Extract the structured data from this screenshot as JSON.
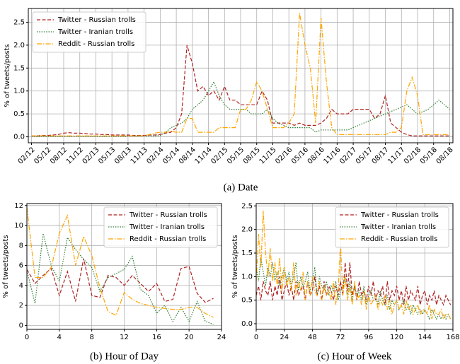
{
  "chart_data": [
    {
      "type": "line",
      "caption": "(a) Date",
      "ylabel": "% of tweets/posts",
      "grid": true,
      "legend": "upper-left",
      "categories": [
        "02/12",
        null,
        null,
        "05/12",
        null,
        null,
        "08/12",
        null,
        null,
        "11/12",
        null,
        null,
        "02/13",
        null,
        null,
        "05/13",
        null,
        null,
        "08/13",
        null,
        null,
        "11/13",
        null,
        null,
        "02/14",
        null,
        null,
        "05/14",
        null,
        null,
        "08/14",
        null,
        null,
        "11/14",
        null,
        null,
        "02/15",
        null,
        null,
        "05/15",
        null,
        null,
        "08/15",
        null,
        null,
        "11/15",
        null,
        null,
        "02/16",
        null,
        null,
        "05/16",
        null,
        null,
        "08/16",
        null,
        null,
        "11/16",
        null,
        null,
        "02/17",
        null,
        null,
        "05/17",
        null,
        null,
        "08/17",
        null,
        null,
        "11/17",
        null,
        null,
        "02/18",
        null,
        null,
        "05/18",
        null,
        null,
        "08/18"
      ],
      "ylim": [
        -0.13,
        2.8
      ],
      "yticks": [
        {
          "value": 0,
          "label": "0.0"
        },
        0.5,
        {
          "value": 1,
          "label": "1.0"
        },
        1.5,
        {
          "value": 2,
          "label": "2.0"
        },
        2.5
      ],
      "series": [
        {
          "name": "Twitter - Russian trolls",
          "color": "#b22222",
          "dash": "dashed",
          "values": [
            0.02,
            0.02,
            0.03,
            0.03,
            0.04,
            0.05,
            0.08,
            0.09,
            0.08,
            0.08,
            0.07,
            0.06,
            0.06,
            0.05,
            0.05,
            0.04,
            0.04,
            0.04,
            0.04,
            0.03,
            0.03,
            0.03,
            0.04,
            0.04,
            0.05,
            0.08,
            0.1,
            0.2,
            0.5,
            2.0,
            1.6,
            1.0,
            1.1,
            0.9,
            1.0,
            0.8,
            1.1,
            0.8,
            0.8,
            0.7,
            0.7,
            0.7,
            0.7,
            1.0,
            0.8,
            0.3,
            0.3,
            0.3,
            0.3,
            0.25,
            0.3,
            0.25,
            0.25,
            0.25,
            0.3,
            0.4,
            0.6,
            0.5,
            0.5,
            0.5,
            0.6,
            0.6,
            0.6,
            0.6,
            0.4,
            0.5,
            0.9,
            0.3,
            0.2,
            0.1,
            0.05,
            0.02,
            0.02,
            0.02,
            0.02,
            0.02,
            0.02,
            0.02,
            0.02
          ]
        },
        {
          "name": "Twitter - Iranian trolls",
          "color": "#2e7d32",
          "dash": "dotted",
          "values": [
            0.01,
            0.01,
            0.01,
            0.01,
            0.01,
            0.01,
            0.01,
            0.01,
            0.01,
            0.01,
            0.01,
            0.01,
            0.01,
            0.01,
            0.01,
            0.01,
            0.01,
            0.01,
            0.02,
            0.02,
            0.02,
            0.02,
            0.02,
            0.02,
            0.03,
            0.1,
            0.2,
            0.25,
            0.3,
            0.4,
            0.6,
            0.7,
            0.8,
            1.0,
            1.2,
            0.9,
            0.7,
            0.6,
            0.6,
            0.6,
            0.6,
            0.5,
            0.5,
            0.5,
            0.6,
            0.4,
            0.3,
            0.25,
            0.2,
            0.2,
            0.2,
            0.2,
            0.2,
            0.1,
            0.15,
            0.15,
            0.15,
            0.15,
            0.15,
            0.15,
            0.2,
            0.25,
            0.3,
            0.35,
            0.4,
            0.45,
            0.5,
            0.55,
            0.6,
            0.65,
            0.7,
            0.6,
            0.5,
            0.55,
            0.6,
            0.7,
            0.8,
            0.7,
            0.6
          ]
        },
        {
          "name": "Reddit - Russian trolls",
          "color": "#ffa500",
          "dash": "dashdot",
          "values": [
            0.02,
            0.02,
            0.02,
            0.02,
            0.02,
            0.02,
            0.02,
            0.02,
            0.02,
            0.02,
            0.02,
            0.02,
            0.02,
            0.02,
            0.02,
            0.02,
            0.02,
            0.02,
            0.02,
            0.02,
            0.02,
            0.02,
            0.05,
            0.08,
            0.1,
            0.1,
            0.12,
            0.1,
            0.1,
            0.4,
            0.4,
            0.1,
            0.1,
            0.1,
            0.1,
            0.2,
            0.2,
            0.2,
            0.2,
            0.6,
            0.6,
            0.8,
            1.2,
            1.0,
            0.6,
            0.2,
            0.2,
            0.2,
            0.3,
            0.5,
            2.7,
            2.0,
            1.5,
            0.3,
            2.6,
            1.2,
            0.2,
            0.05,
            0.05,
            0.05,
            0.05,
            0.05,
            0.05,
            0.05,
            0.05,
            0.05,
            0.05,
            0.1,
            0.1,
            0.2,
            1.0,
            1.3,
            0.9,
            0.05,
            0.05,
            0.05,
            0.05,
            0.05,
            0.05
          ]
        }
      ]
    },
    {
      "type": "line",
      "caption": "(b) Hour of Day",
      "ylabel": "% of tweets/posts",
      "grid": true,
      "legend": "upper-right",
      "x": [
        0,
        1,
        2,
        3,
        4,
        5,
        6,
        7,
        8,
        9,
        10,
        11,
        12,
        13,
        14,
        15,
        16,
        17,
        18,
        19,
        20,
        21,
        22,
        23
      ],
      "xlim": [
        0,
        24
      ],
      "xticks": [
        0,
        4,
        8,
        12,
        16,
        20,
        24
      ],
      "ylim": [
        -0.4,
        12.2
      ],
      "yticks": [
        0,
        2,
        4,
        6,
        8,
        10,
        12
      ],
      "series": [
        {
          "name": "Twitter - Russian trolls",
          "color": "#b22222",
          "dash": "dashed",
          "values": [
            5.6,
            4.2,
            5.0,
            5.7,
            3.0,
            5.4,
            2.4,
            6.7,
            3.0,
            2.8,
            5.0,
            4.8,
            4.0,
            5.0,
            4.2,
            3.4,
            4.2,
            2.4,
            2.6,
            5.7,
            5.9,
            3.2,
            2.3,
            2.7
          ]
        },
        {
          "name": "Twitter - Iranian trolls",
          "color": "#2e7d32",
          "dash": "dotted",
          "values": [
            5.5,
            2.2,
            9.2,
            6.0,
            4.4,
            8.8,
            7.6,
            6.6,
            5.8,
            3.4,
            4.8,
            5.2,
            5.6,
            6.9,
            3.6,
            3.0,
            1.2,
            2.0,
            0.4,
            1.8,
            0.4,
            2.4,
            0.4,
            0.1
          ]
        },
        {
          "name": "Reddit - Russian trolls",
          "color": "#ffa500",
          "dash": "dashdot",
          "values": [
            11.8,
            4.8,
            4.8,
            5.8,
            9.2,
            11.0,
            6.0,
            8.9,
            7.0,
            3.8,
            1.4,
            1.0,
            3.3,
            2.6,
            2.2,
            2.0,
            1.8,
            1.7,
            1.6,
            1.6,
            1.8,
            1.8,
            1.2,
            0.8
          ]
        }
      ]
    },
    {
      "type": "line",
      "caption": "(c) Hour of Week",
      "ylabel": "% of tweets/posts",
      "grid": true,
      "legend": "upper-right",
      "x": [
        0,
        2,
        4,
        6,
        8,
        10,
        12,
        14,
        16,
        18,
        20,
        22,
        24,
        26,
        28,
        30,
        32,
        34,
        36,
        38,
        40,
        42,
        44,
        46,
        48,
        50,
        52,
        54,
        56,
        58,
        60,
        62,
        64,
        66,
        68,
        70,
        72,
        74,
        76,
        78,
        80,
        82,
        84,
        86,
        88,
        90,
        92,
        94,
        96,
        98,
        100,
        102,
        104,
        106,
        108,
        110,
        112,
        114,
        116,
        118,
        120,
        122,
        124,
        126,
        128,
        130,
        132,
        134,
        136,
        138,
        140,
        142,
        144,
        146,
        148,
        150,
        152,
        154,
        156,
        158,
        160,
        162,
        164,
        166
      ],
      "xlim": [
        0,
        168
      ],
      "xticks": [
        0,
        24,
        48,
        72,
        96,
        120,
        144,
        168
      ],
      "ylim": [
        -0.12,
        2.55
      ],
      "yticks": [
        {
          "value": 0,
          "label": "0.0"
        },
        0.5,
        {
          "value": 1,
          "label": "1.0"
        },
        1.5,
        {
          "value": 2,
          "label": "2.0"
        },
        2.5
      ],
      "series": [
        {
          "name": "Twitter - Russian trolls",
          "color": "#b22222",
          "dash": "dashed",
          "values": [
            0.6,
            0.8,
            0.5,
            0.9,
            0.7,
            0.6,
            0.9,
            0.5,
            0.8,
            0.6,
            1.0,
            0.5,
            0.7,
            0.9,
            0.6,
            0.8,
            0.5,
            0.9,
            0.6,
            0.7,
            0.8,
            0.5,
            0.9,
            0.6,
            0.7,
            1.0,
            0.6,
            0.8,
            0.5,
            0.9,
            0.6,
            0.8,
            0.7,
            0.5,
            0.8,
            0.6,
            0.9,
            0.6,
            1.3,
            0.7,
            1.3,
            0.6,
            0.8,
            0.5,
            0.9,
            0.6,
            0.7,
            0.5,
            0.8,
            0.6,
            0.9,
            0.5,
            0.7,
            0.6,
            0.8,
            0.4,
            0.9,
            0.5,
            0.7,
            0.6,
            0.8,
            0.5,
            0.7,
            0.4,
            0.8,
            0.5,
            0.7,
            0.6,
            0.5,
            0.8,
            0.4,
            0.6,
            0.7,
            0.4,
            0.6,
            0.5,
            0.7,
            0.4,
            0.6,
            0.5,
            0.4,
            0.6,
            0.5,
            0.4
          ]
        },
        {
          "name": "Twitter - Iranian trolls",
          "color": "#2e7d32",
          "dash": "dotted",
          "values": [
            1.2,
            0.9,
            1.4,
            1.1,
            0.8,
            1.2,
            1.0,
            1.3,
            0.9,
            1.1,
            0.8,
            1.0,
            1.2,
            0.9,
            1.1,
            0.8,
            1.0,
            1.3,
            0.7,
            1.0,
            0.8,
            0.9,
            1.1,
            0.7,
            0.9,
            1.2,
            0.6,
            1.0,
            0.8,
            0.7,
            0.9,
            0.6,
            0.8,
            0.7,
            0.9,
            0.5,
            0.7,
            0.8,
            1.0,
            0.6,
            0.9,
            0.5,
            0.8,
            0.6,
            0.7,
            0.5,
            0.8,
            0.4,
            0.6,
            0.7,
            0.5,
            0.6,
            0.4,
            0.7,
            0.5,
            0.4,
            0.6,
            0.3,
            0.5,
            0.4,
            0.5,
            0.3,
            0.4,
            0.5,
            0.3,
            0.4,
            0.2,
            0.4,
            0.3,
            0.2,
            0.3,
            0.2,
            0.3,
            0.2,
            0.1,
            0.3,
            0.2,
            0.1,
            0.2,
            0.1,
            0.2,
            0.1,
            0.2,
            0.1
          ]
        },
        {
          "name": "Reddit - Russian trolls",
          "color": "#ffa500",
          "dash": "dashdot",
          "values": [
            0.9,
            1.9,
            1.2,
            2.4,
            1.5,
            1.0,
            1.6,
            0.9,
            1.3,
            0.8,
            1.4,
            0.7,
            1.2,
            0.8,
            1.0,
            0.7,
            1.3,
            0.6,
            0.9,
            0.7,
            1.1,
            0.5,
            0.9,
            0.6,
            1.0,
            0.7,
            0.6,
            0.9,
            0.5,
            0.8,
            0.6,
            0.7,
            0.5,
            0.9,
            0.4,
            0.7,
            1.7,
            0.6,
            1.0,
            0.5,
            0.8,
            0.4,
            0.9,
            0.5,
            0.6,
            0.4,
            0.7,
            0.3,
            0.6,
            0.4,
            0.5,
            0.6,
            0.3,
            0.5,
            0.4,
            0.6,
            0.3,
            0.5,
            0.2,
            0.4,
            0.5,
            0.3,
            0.4,
            0.2,
            0.5,
            0.3,
            0.4,
            0.2,
            0.3,
            0.4,
            0.2,
            0.3,
            0.3,
            0.2,
            0.4,
            0.1,
            0.3,
            0.2,
            0.2,
            0.3,
            0.1,
            0.2,
            0.2,
            0.1
          ]
        }
      ]
    }
  ]
}
